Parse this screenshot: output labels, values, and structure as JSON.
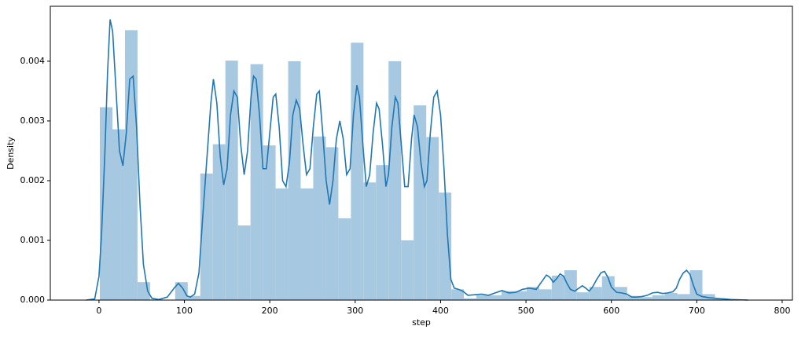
{
  "chart_data": {
    "type": "histogram",
    "xlabel": "step",
    "ylabel": "Density",
    "bins": [
      1,
      15.7,
      30.4,
      45.1,
      59.8,
      74.5,
      89.2,
      103.9,
      118.6,
      133.3,
      148,
      162.7,
      177.4,
      192.1,
      206.8,
      221.5,
      236.2,
      250.9,
      265.6,
      280.3,
      295,
      309.7,
      324.4,
      339.1,
      353.8,
      368.5,
      383.2,
      397.9,
      412.6,
      427.3,
      442,
      456.7,
      471.4,
      486.1,
      500.8,
      515.5,
      530.2,
      544.9,
      559.6,
      574.3,
      589,
      603.7,
      618.4,
      633.1,
      647.8,
      662.5,
      677.2,
      691.9,
      706.6,
      721.3,
      736,
      750.7
    ],
    "values": [
      0.00323,
      0.00286,
      0.00452,
      0.0003,
      1e-05,
      0,
      0.0003,
      7e-05,
      0.00212,
      0.00261,
      0.00401,
      0.00125,
      0.00395,
      0.00259,
      0.00187,
      0.004,
      0.00187,
      0.00274,
      0.00256,
      0.00137,
      0.00431,
      0.00197,
      0.00226,
      0.004,
      0.001,
      0.00326,
      0.00273,
      0.0018,
      0.00018,
      3e-05,
      8e-05,
      8e-05,
      0.00015,
      0.00015,
      0.00022,
      0.00018,
      0.00041,
      0.0005,
      0.00013,
      0.00022,
      0.0004,
      0.00022,
      7e-05,
      5e-05,
      8e-05,
      0.00012,
      0.0001,
      0.0005,
      0.0001,
      3e-05,
      1e-05
    ],
    "color": "#a6c8e1",
    "kde": {
      "color": "#1f77b4",
      "x": [
        -15,
        -5,
        0,
        3,
        7,
        10,
        13,
        16,
        20,
        24,
        28,
        32,
        36,
        40,
        44,
        48,
        52,
        57,
        62,
        70,
        80,
        88,
        93,
        98,
        103,
        107,
        112,
        117,
        122,
        127,
        131,
        134,
        138,
        142,
        146,
        150,
        154,
        158,
        162,
        166,
        170,
        174,
        178,
        181,
        184,
        188,
        192,
        196,
        200,
        204,
        207,
        211,
        215,
        219,
        223,
        227,
        231,
        235,
        239,
        243,
        247,
        251,
        255,
        258,
        262,
        266,
        270,
        274,
        278,
        282,
        286,
        290,
        294,
        298,
        302,
        305,
        309,
        313,
        317,
        321,
        325,
        328,
        332,
        336,
        339,
        343,
        347,
        350,
        354,
        358,
        362,
        366,
        369,
        373,
        377,
        381,
        384,
        388,
        392,
        396,
        400,
        404,
        408,
        412,
        416,
        421,
        426,
        432,
        440,
        448,
        456,
        464,
        472,
        480,
        488,
        496,
        504,
        512,
        518,
        524,
        528,
        532,
        536,
        540,
        544,
        548,
        552,
        557,
        562,
        566,
        570,
        574,
        578,
        583,
        588,
        592,
        596,
        600,
        606,
        612,
        618,
        624,
        630,
        636,
        642,
        648,
        654,
        660,
        666,
        672,
        676,
        680,
        684,
        688,
        692,
        696,
        700,
        706,
        714,
        722,
        730,
        740,
        750,
        760
      ],
      "values": [
        0,
        2e-05,
        0.0004,
        0.0011,
        0.0025,
        0.0038,
        0.0047,
        0.0045,
        0.0035,
        0.0025,
        0.00225,
        0.0028,
        0.0037,
        0.00375,
        0.0029,
        0.0016,
        0.0006,
        0.00015,
        3e-05,
        1e-05,
        5e-05,
        0.0002,
        0.00028,
        0.0002,
        7e-05,
        5e-05,
        0.0001,
        0.00045,
        0.0015,
        0.0025,
        0.0033,
        0.0037,
        0.0033,
        0.0024,
        0.00193,
        0.0022,
        0.0031,
        0.0035,
        0.0034,
        0.0026,
        0.0021,
        0.0025,
        0.0034,
        0.00375,
        0.0037,
        0.0031,
        0.0022,
        0.0022,
        0.0028,
        0.0034,
        0.00345,
        0.0029,
        0.002,
        0.0019,
        0.0023,
        0.0031,
        0.00335,
        0.0032,
        0.0026,
        0.0021,
        0.0022,
        0.0029,
        0.00345,
        0.0035,
        0.0028,
        0.002,
        0.0016,
        0.002,
        0.0027,
        0.003,
        0.0027,
        0.0021,
        0.0022,
        0.0031,
        0.0036,
        0.0034,
        0.0026,
        0.0019,
        0.0021,
        0.0028,
        0.0033,
        0.0032,
        0.0026,
        0.0019,
        0.0021,
        0.0029,
        0.0034,
        0.0033,
        0.0026,
        0.0019,
        0.0019,
        0.0027,
        0.0031,
        0.0029,
        0.0023,
        0.0019,
        0.002,
        0.0028,
        0.0034,
        0.0035,
        0.0031,
        0.0022,
        0.0011,
        0.00035,
        0.0002,
        0.00018,
        0.00015,
        8e-05,
        9e-05,
        0.0001,
        8e-05,
        0.00012,
        0.00016,
        0.00012,
        0.00013,
        0.00018,
        0.0002,
        0.00018,
        0.0003,
        0.00042,
        0.00038,
        0.0003,
        0.00036,
        0.00044,
        0.0004,
        0.00028,
        0.00018,
        0.00015,
        0.0002,
        0.00024,
        0.0002,
        0.00015,
        0.00022,
        0.00035,
        0.00046,
        0.00048,
        0.00038,
        0.00022,
        0.00013,
        0.00012,
        0.0001,
        5e-05,
        5e-05,
        6e-05,
        8e-05,
        0.00012,
        0.00013,
        0.00011,
        0.00012,
        0.00014,
        0.0002,
        0.00035,
        0.00045,
        0.0005,
        0.00043,
        0.00025,
        0.0001,
        6e-05,
        4e-05,
        3e-05,
        2e-05,
        1e-05,
        5e-06,
        0
      ]
    },
    "xlim": [
      -57,
      812
    ],
    "ylim": [
      0,
      0.00492
    ],
    "xticks": [
      0,
      100,
      200,
      300,
      400,
      500,
      600,
      700,
      800
    ],
    "yticks": [
      {
        "value": 0,
        "label": "0.000"
      },
      0.001,
      0.002,
      0.003,
      0.004
    ]
  }
}
